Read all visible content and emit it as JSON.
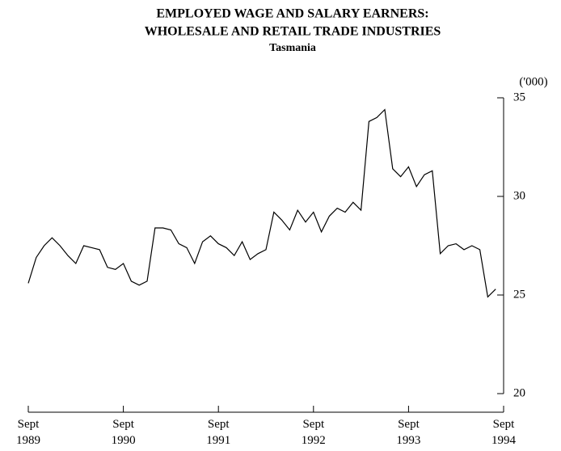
{
  "chart_data": {
    "type": "line",
    "title": [
      "EMPLOYED WAGE AND SALARY EARNERS:",
      "WHOLESALE AND RETAIL TRADE INDUSTRIES"
    ],
    "subtitle": "Tasmania",
    "y_label": "('000)",
    "categories": [
      "Sept 1989",
      null,
      null,
      null,
      null,
      null,
      null,
      null,
      null,
      null,
      null,
      null,
      "Sept 1990",
      null,
      null,
      null,
      null,
      null,
      null,
      null,
      null,
      null,
      null,
      null,
      "Sept 1991",
      null,
      null,
      null,
      null,
      null,
      null,
      null,
      null,
      null,
      null,
      null,
      "Sept 1992",
      null,
      null,
      null,
      null,
      null,
      null,
      null,
      null,
      null,
      null,
      null,
      "Sept 1993",
      null,
      null,
      null,
      null,
      null,
      null,
      null,
      null,
      null,
      null,
      null,
      "Sept 1994"
    ],
    "series": [
      {
        "color": "#000000",
        "values": [
          25.6,
          26.9,
          27.5,
          27.9,
          27.5,
          27.0,
          26.6,
          27.5,
          27.4,
          27.3,
          26.4,
          26.3,
          26.6,
          25.7,
          25.5,
          25.7,
          28.4,
          28.4,
          28.3,
          27.6,
          27.4,
          26.6,
          27.7,
          28.0,
          27.6,
          27.4,
          27.0,
          27.7,
          26.8,
          27.1,
          27.3,
          29.2,
          28.8,
          28.3,
          29.3,
          28.7,
          29.2,
          28.2,
          29.0,
          29.4,
          29.2,
          29.7,
          29.3,
          33.8,
          34.0,
          34.4,
          31.4,
          31.0,
          31.5,
          30.5,
          31.1,
          31.3,
          27.1,
          27.5,
          27.6,
          27.3,
          27.5,
          27.3,
          24.9,
          25.3,
          null
        ]
      }
    ],
    "ylim": [
      20,
      35
    ],
    "yticks": [
      20,
      25,
      30,
      35
    ],
    "y_axis_side": "right"
  }
}
